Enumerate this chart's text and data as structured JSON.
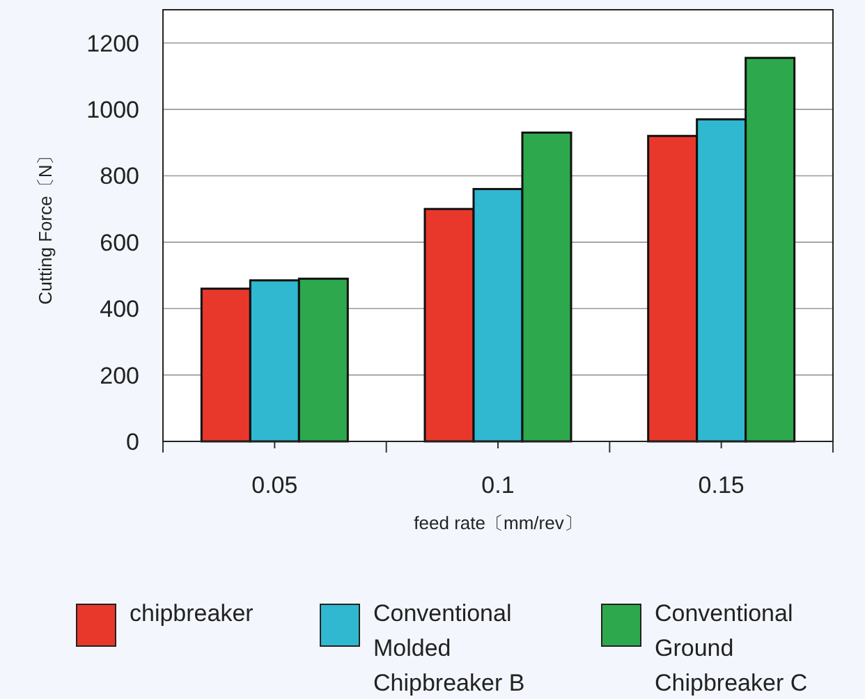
{
  "chart_data": {
    "type": "bar",
    "xlabel": "feed rate〔mm/rev〕",
    "ylabel": "Cutting Force〔N〕",
    "categories": [
      "0.05",
      "0.1",
      "0.15"
    ],
    "series": [
      {
        "name": "chipbreaker",
        "color": "#e8382c",
        "values": [
          460,
          700,
          920
        ]
      },
      {
        "name": "Conventional Molded Chipbreaker B",
        "color": "#2fb8d0",
        "values": [
          485,
          760,
          970
        ]
      },
      {
        "name": "Conventional Ground Chipbreaker C",
        "color": "#2ea84c",
        "values": [
          490,
          930,
          1155
        ]
      }
    ],
    "ylim": [
      0,
      1300
    ],
    "yticks": [
      0,
      200,
      400,
      600,
      800,
      1000,
      1200
    ],
    "grid": "y",
    "legend": "bottom"
  }
}
